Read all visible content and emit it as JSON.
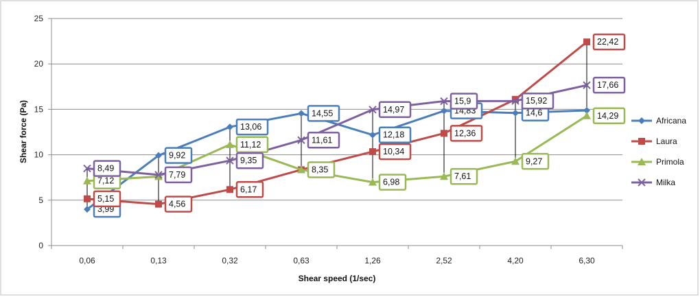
{
  "chart_data": {
    "type": "line",
    "xlabel": "Shear speed (1/sec)",
    "ylabel": "Shear force (Pa)",
    "ylim": [
      0,
      25
    ],
    "yticks": [
      0,
      5,
      10,
      15,
      20,
      25
    ],
    "grid": "horizontal",
    "legend_position": "right",
    "categories": [
      "0,06",
      "0,13",
      "0,32",
      "0,63",
      "1,26",
      "2,52",
      "4,20",
      "6,30"
    ],
    "series": [
      {
        "name": "Africana",
        "color": "#4a7ebb",
        "marker": "diamond",
        "values": [
          3.99,
          9.92,
          13.06,
          14.55,
          12.18,
          14.83,
          14.6,
          14.88
        ],
        "labels": [
          "3,99",
          "9,92",
          "13,06",
          "14,55",
          "12,18",
          "14,83",
          "14,6",
          ""
        ]
      },
      {
        "name": "Laura",
        "color": "#be4b48",
        "marker": "square",
        "values": [
          5.15,
          4.56,
          6.17,
          8.35,
          10.34,
          12.36,
          16.1,
          22.42
        ],
        "labels": [
          "5,15",
          "4,56",
          "6,17",
          "",
          "10,34",
          "12,36",
          "",
          "22,42"
        ]
      },
      {
        "name": "Primola",
        "color": "#98b954",
        "marker": "triangle",
        "values": [
          7.12,
          7.6,
          11.12,
          8.35,
          6.98,
          7.61,
          9.27,
          14.29
        ],
        "labels": [
          "7,12",
          "",
          "11,12",
          "8,35",
          "6,98",
          "7,61",
          "9,27",
          "14,29"
        ]
      },
      {
        "name": "Milka",
        "color": "#7d60a0",
        "marker": "x",
        "values": [
          8.49,
          7.79,
          9.35,
          11.61,
          14.97,
          15.9,
          15.92,
          17.66
        ],
        "labels": [
          "8,49",
          "7,79",
          "9,35",
          "11,61",
          "14,97",
          "15,9",
          "15,92",
          "17,66"
        ]
      }
    ]
  }
}
